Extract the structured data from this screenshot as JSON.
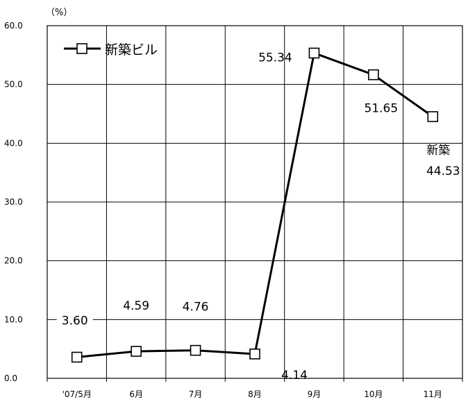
{
  "chart_data": {
    "type": "line",
    "unit_label": "（%）",
    "categories": [
      "'07/5月",
      "6月",
      "7月",
      "8月",
      "9月",
      "10月",
      "11月"
    ],
    "series": [
      {
        "name": "新築ビル",
        "values": [
          3.6,
          4.59,
          4.76,
          4.14,
          55.34,
          51.65,
          44.53
        ],
        "color": "#000000",
        "marker": "open-square"
      }
    ],
    "data_labels": [
      "3.60",
      "4.59",
      "4.76",
      "4.14",
      "55.34",
      "51.65",
      "44.53"
    ],
    "annotation": "新築",
    "ylim": [
      0,
      60
    ],
    "yticks": [
      "0.0",
      "10.0",
      "20.0",
      "30.0",
      "40.0",
      "50.0",
      "60.0"
    ],
    "grid": true,
    "legend_position": "top-left"
  }
}
